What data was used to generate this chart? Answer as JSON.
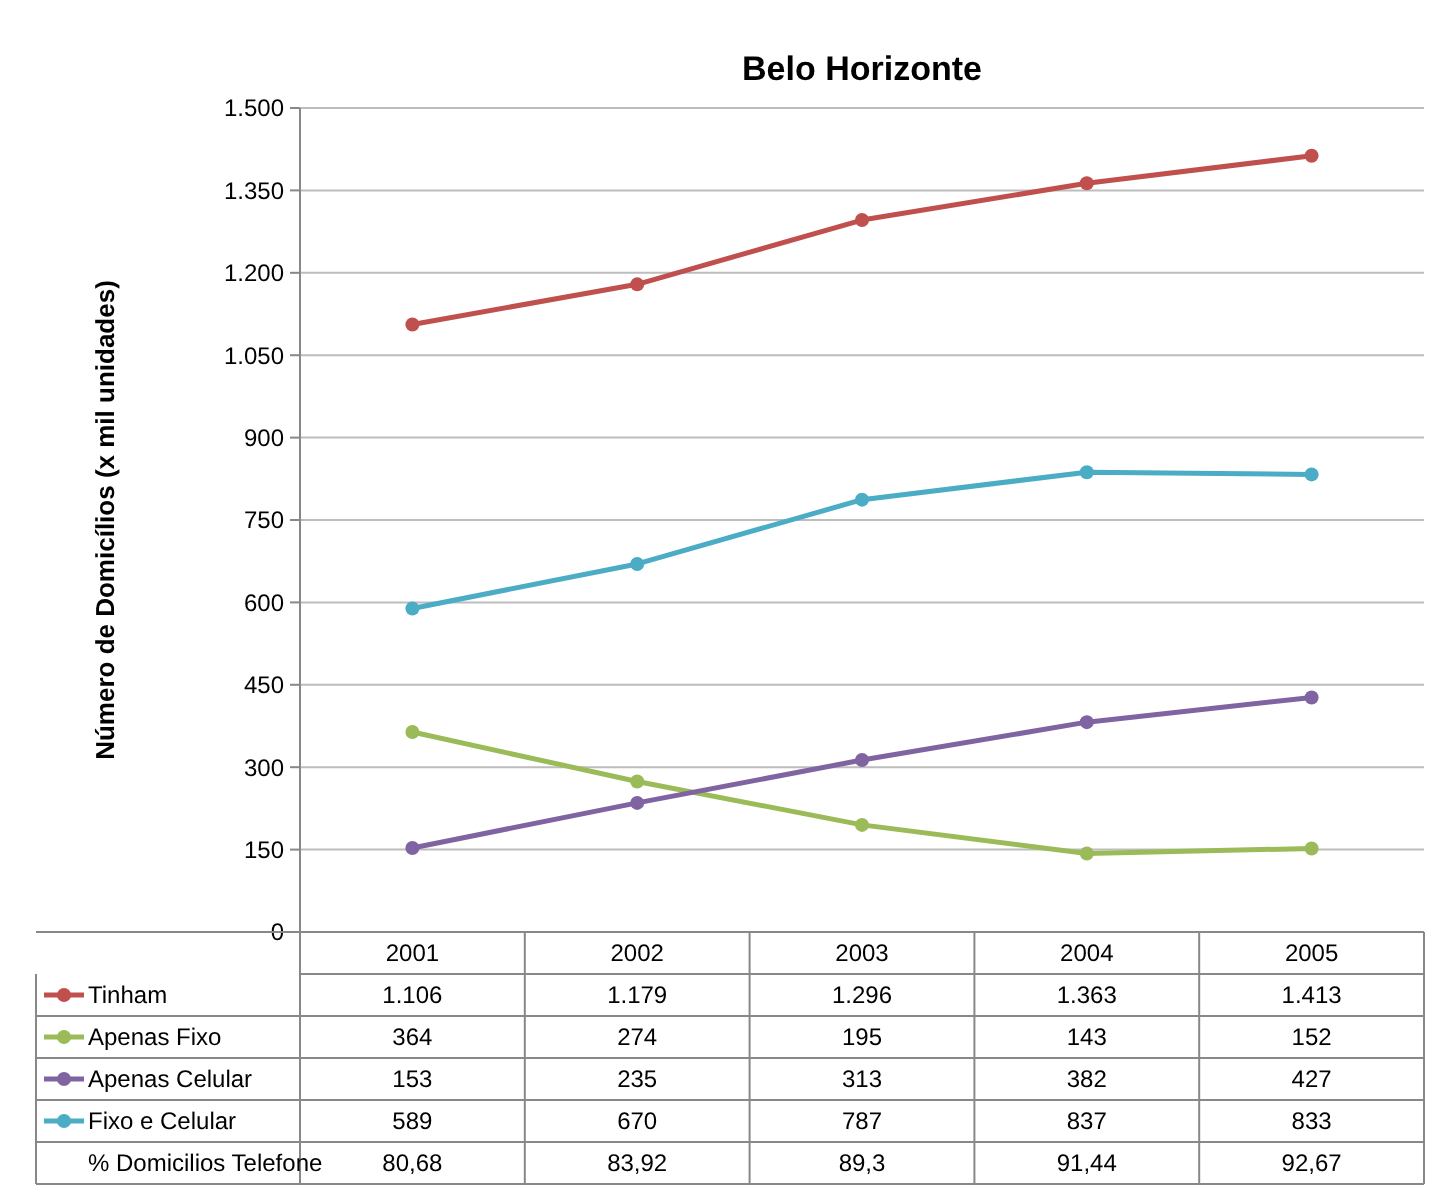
{
  "chart_data": {
    "type": "line",
    "title": "Belo Horizonte",
    "ylabel": "Número de Domicílios (x mil unidades)",
    "categories": [
      "2001",
      "2002",
      "2003",
      "2004",
      "2005"
    ],
    "series": [
      {
        "name": "Tinham",
        "color": "#c0504d",
        "values": [
          1106,
          1179,
          1296,
          1363,
          1413
        ],
        "value_labels": [
          "1.106",
          "1.179",
          "1.296",
          "1.363",
          "1.413"
        ]
      },
      {
        "name": "Apenas Fixo",
        "color": "#9bbb59",
        "values": [
          364,
          274,
          195,
          143,
          152
        ],
        "value_labels": [
          "364",
          "274",
          "195",
          "143",
          "152"
        ]
      },
      {
        "name": "Apenas Celular",
        "color": "#8064a2",
        "values": [
          153,
          235,
          313,
          382,
          427
        ],
        "value_labels": [
          "153",
          "235",
          "313",
          "382",
          "427"
        ]
      },
      {
        "name": "Fixo e Celular",
        "color": "#4bacc6",
        "values": [
          589,
          670,
          787,
          837,
          833
        ],
        "value_labels": [
          "589",
          "670",
          "787",
          "837",
          "833"
        ]
      }
    ],
    "ylim": [
      0,
      1500
    ],
    "yticks": [
      0,
      150,
      300,
      450,
      600,
      750,
      900,
      {
        "value": 1050,
        "label": "1.050"
      },
      {
        "value": 1200,
        "label": "1.200"
      },
      {
        "value": 1350,
        "label": "1.350"
      },
      {
        "value": 1500,
        "label": "1.500"
      }
    ],
    "grid": "y",
    "marker": "circle",
    "line_style": "solid",
    "legend": "bottom",
    "annotations": [
      "% Domicilios Telefone",
      "80,68",
      "83,92",
      "89,3",
      "91,44",
      "92,67"
    ]
  }
}
